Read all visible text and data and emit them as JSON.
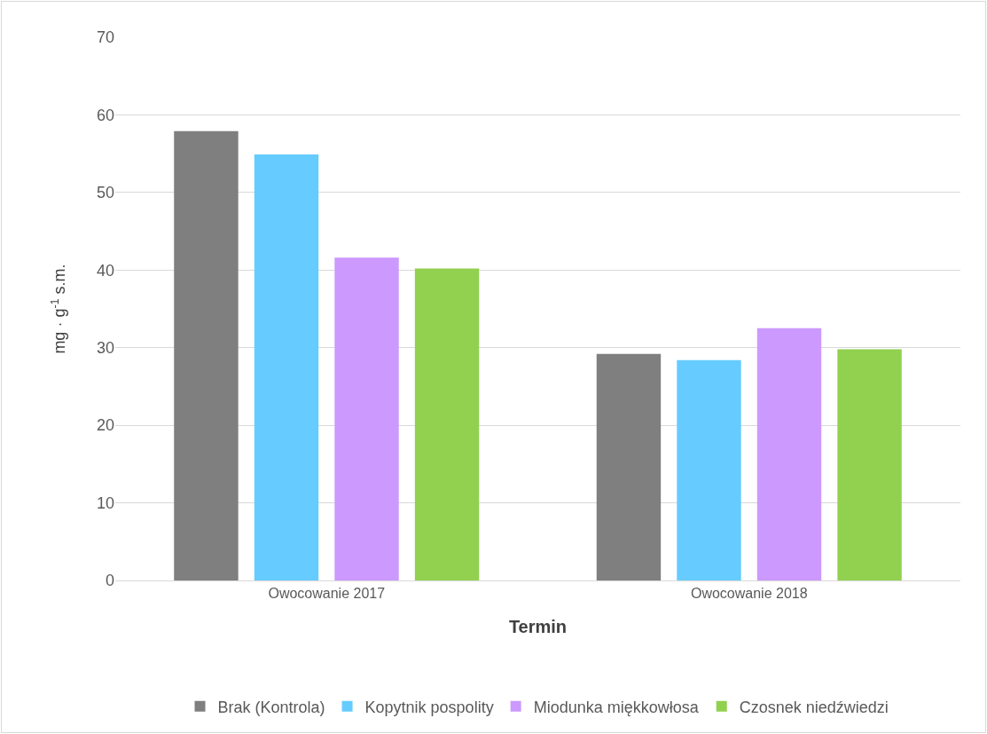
{
  "chart_data": {
    "type": "bar",
    "xlabel": "Termin",
    "ylabel": "mg · g$^{-1}$ s.m.",
    "categories": [
      "Owocowanie 2017",
      "Owocowanie 2018"
    ],
    "series": [
      {
        "name": "Brak (Kontrola)",
        "color": "#7f7f7f",
        "values": [
          57.9,
          29.2
        ]
      },
      {
        "name": "Kopytnik pospolity",
        "color": "#66ccff",
        "values": [
          54.9,
          28.4
        ]
      },
      {
        "name": "Miodunka miękkowłosa",
        "color": "#cc99ff",
        "values": [
          41.6,
          32.5
        ]
      },
      {
        "name": "Czosnek niedźwiedzi",
        "color": "#92d050",
        "values": [
          40.2,
          29.8
        ]
      }
    ],
    "ylim": [
      0,
      70
    ],
    "yticks": [
      0,
      10,
      20,
      30,
      40,
      50,
      60,
      70
    ],
    "grid": "y",
    "legend": "bottom"
  }
}
